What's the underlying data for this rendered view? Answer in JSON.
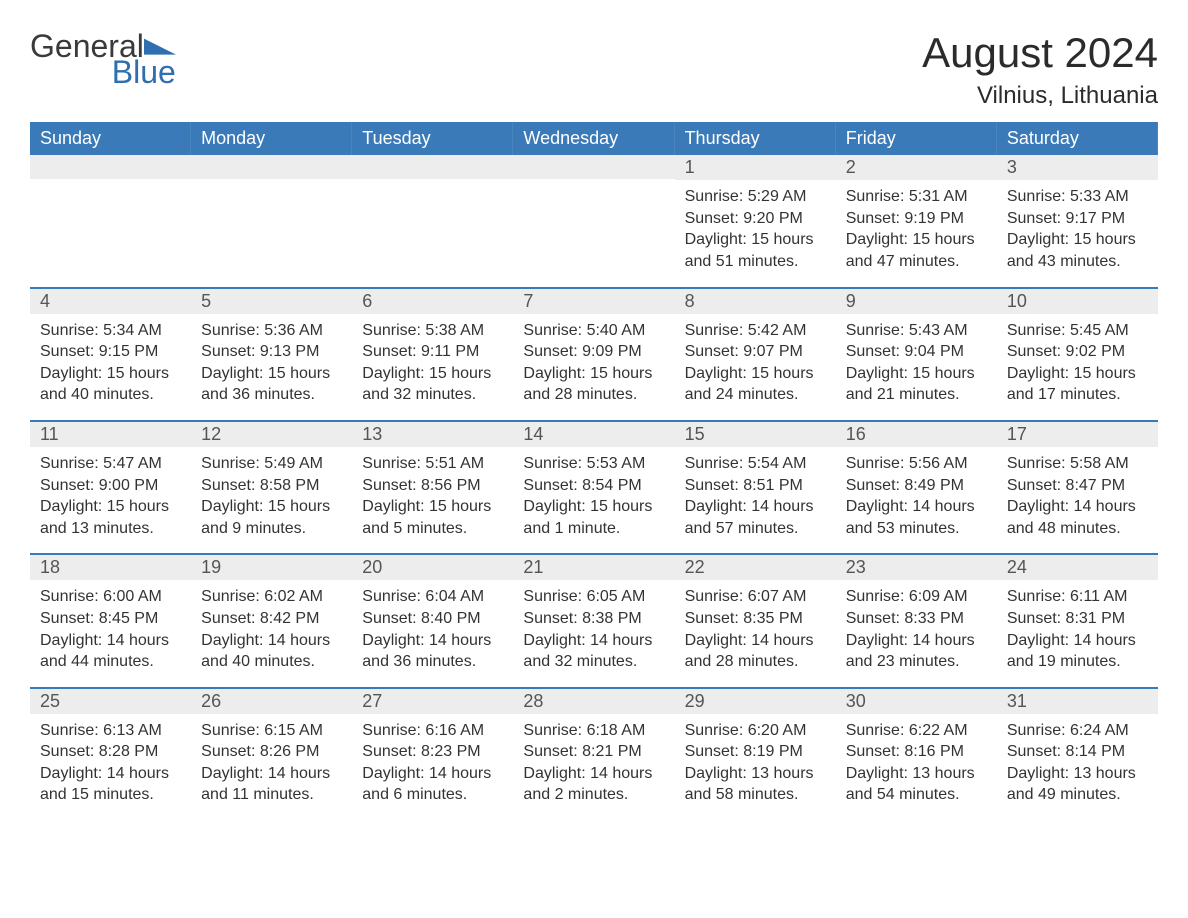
{
  "logo": {
    "word1": "General",
    "word2": "Blue",
    "brand_color": "#2f6fb0",
    "text_color": "#3a3a3a"
  },
  "header": {
    "month_title": "August 2024",
    "location": "Vilnius, Lithuania"
  },
  "colors": {
    "header_bg": "#3a7ab8",
    "header_text": "#ffffff",
    "week_border": "#3a7ab8",
    "daynum_bg": "#ededed",
    "body_text": "#333333",
    "page_bg": "#ffffff"
  },
  "days_of_week": [
    "Sunday",
    "Monday",
    "Tuesday",
    "Wednesday",
    "Thursday",
    "Friday",
    "Saturday"
  ],
  "weeks": [
    [
      {
        "blank": true
      },
      {
        "blank": true
      },
      {
        "blank": true
      },
      {
        "blank": true
      },
      {
        "num": "1",
        "sunrise": "Sunrise: 5:29 AM",
        "sunset": "Sunset: 9:20 PM",
        "dl1": "Daylight: 15 hours",
        "dl2": "and 51 minutes."
      },
      {
        "num": "2",
        "sunrise": "Sunrise: 5:31 AM",
        "sunset": "Sunset: 9:19 PM",
        "dl1": "Daylight: 15 hours",
        "dl2": "and 47 minutes."
      },
      {
        "num": "3",
        "sunrise": "Sunrise: 5:33 AM",
        "sunset": "Sunset: 9:17 PM",
        "dl1": "Daylight: 15 hours",
        "dl2": "and 43 minutes."
      }
    ],
    [
      {
        "num": "4",
        "sunrise": "Sunrise: 5:34 AM",
        "sunset": "Sunset: 9:15 PM",
        "dl1": "Daylight: 15 hours",
        "dl2": "and 40 minutes."
      },
      {
        "num": "5",
        "sunrise": "Sunrise: 5:36 AM",
        "sunset": "Sunset: 9:13 PM",
        "dl1": "Daylight: 15 hours",
        "dl2": "and 36 minutes."
      },
      {
        "num": "6",
        "sunrise": "Sunrise: 5:38 AM",
        "sunset": "Sunset: 9:11 PM",
        "dl1": "Daylight: 15 hours",
        "dl2": "and 32 minutes."
      },
      {
        "num": "7",
        "sunrise": "Sunrise: 5:40 AM",
        "sunset": "Sunset: 9:09 PM",
        "dl1": "Daylight: 15 hours",
        "dl2": "and 28 minutes."
      },
      {
        "num": "8",
        "sunrise": "Sunrise: 5:42 AM",
        "sunset": "Sunset: 9:07 PM",
        "dl1": "Daylight: 15 hours",
        "dl2": "and 24 minutes."
      },
      {
        "num": "9",
        "sunrise": "Sunrise: 5:43 AM",
        "sunset": "Sunset: 9:04 PM",
        "dl1": "Daylight: 15 hours",
        "dl2": "and 21 minutes."
      },
      {
        "num": "10",
        "sunrise": "Sunrise: 5:45 AM",
        "sunset": "Sunset: 9:02 PM",
        "dl1": "Daylight: 15 hours",
        "dl2": "and 17 minutes."
      }
    ],
    [
      {
        "num": "11",
        "sunrise": "Sunrise: 5:47 AM",
        "sunset": "Sunset: 9:00 PM",
        "dl1": "Daylight: 15 hours",
        "dl2": "and 13 minutes."
      },
      {
        "num": "12",
        "sunrise": "Sunrise: 5:49 AM",
        "sunset": "Sunset: 8:58 PM",
        "dl1": "Daylight: 15 hours",
        "dl2": "and 9 minutes."
      },
      {
        "num": "13",
        "sunrise": "Sunrise: 5:51 AM",
        "sunset": "Sunset: 8:56 PM",
        "dl1": "Daylight: 15 hours",
        "dl2": "and 5 minutes."
      },
      {
        "num": "14",
        "sunrise": "Sunrise: 5:53 AM",
        "sunset": "Sunset: 8:54 PM",
        "dl1": "Daylight: 15 hours",
        "dl2": "and 1 minute."
      },
      {
        "num": "15",
        "sunrise": "Sunrise: 5:54 AM",
        "sunset": "Sunset: 8:51 PM",
        "dl1": "Daylight: 14 hours",
        "dl2": "and 57 minutes."
      },
      {
        "num": "16",
        "sunrise": "Sunrise: 5:56 AM",
        "sunset": "Sunset: 8:49 PM",
        "dl1": "Daylight: 14 hours",
        "dl2": "and 53 minutes."
      },
      {
        "num": "17",
        "sunrise": "Sunrise: 5:58 AM",
        "sunset": "Sunset: 8:47 PM",
        "dl1": "Daylight: 14 hours",
        "dl2": "and 48 minutes."
      }
    ],
    [
      {
        "num": "18",
        "sunrise": "Sunrise: 6:00 AM",
        "sunset": "Sunset: 8:45 PM",
        "dl1": "Daylight: 14 hours",
        "dl2": "and 44 minutes."
      },
      {
        "num": "19",
        "sunrise": "Sunrise: 6:02 AM",
        "sunset": "Sunset: 8:42 PM",
        "dl1": "Daylight: 14 hours",
        "dl2": "and 40 minutes."
      },
      {
        "num": "20",
        "sunrise": "Sunrise: 6:04 AM",
        "sunset": "Sunset: 8:40 PM",
        "dl1": "Daylight: 14 hours",
        "dl2": "and 36 minutes."
      },
      {
        "num": "21",
        "sunrise": "Sunrise: 6:05 AM",
        "sunset": "Sunset: 8:38 PM",
        "dl1": "Daylight: 14 hours",
        "dl2": "and 32 minutes."
      },
      {
        "num": "22",
        "sunrise": "Sunrise: 6:07 AM",
        "sunset": "Sunset: 8:35 PM",
        "dl1": "Daylight: 14 hours",
        "dl2": "and 28 minutes."
      },
      {
        "num": "23",
        "sunrise": "Sunrise: 6:09 AM",
        "sunset": "Sunset: 8:33 PM",
        "dl1": "Daylight: 14 hours",
        "dl2": "and 23 minutes."
      },
      {
        "num": "24",
        "sunrise": "Sunrise: 6:11 AM",
        "sunset": "Sunset: 8:31 PM",
        "dl1": "Daylight: 14 hours",
        "dl2": "and 19 minutes."
      }
    ],
    [
      {
        "num": "25",
        "sunrise": "Sunrise: 6:13 AM",
        "sunset": "Sunset: 8:28 PM",
        "dl1": "Daylight: 14 hours",
        "dl2": "and 15 minutes."
      },
      {
        "num": "26",
        "sunrise": "Sunrise: 6:15 AM",
        "sunset": "Sunset: 8:26 PM",
        "dl1": "Daylight: 14 hours",
        "dl2": "and 11 minutes."
      },
      {
        "num": "27",
        "sunrise": "Sunrise: 6:16 AM",
        "sunset": "Sunset: 8:23 PM",
        "dl1": "Daylight: 14 hours",
        "dl2": "and 6 minutes."
      },
      {
        "num": "28",
        "sunrise": "Sunrise: 6:18 AM",
        "sunset": "Sunset: 8:21 PM",
        "dl1": "Daylight: 14 hours",
        "dl2": "and 2 minutes."
      },
      {
        "num": "29",
        "sunrise": "Sunrise: 6:20 AM",
        "sunset": "Sunset: 8:19 PM",
        "dl1": "Daylight: 13 hours",
        "dl2": "and 58 minutes."
      },
      {
        "num": "30",
        "sunrise": "Sunrise: 6:22 AM",
        "sunset": "Sunset: 8:16 PM",
        "dl1": "Daylight: 13 hours",
        "dl2": "and 54 minutes."
      },
      {
        "num": "31",
        "sunrise": "Sunrise: 6:24 AM",
        "sunset": "Sunset: 8:14 PM",
        "dl1": "Daylight: 13 hours",
        "dl2": "and 49 minutes."
      }
    ]
  ]
}
